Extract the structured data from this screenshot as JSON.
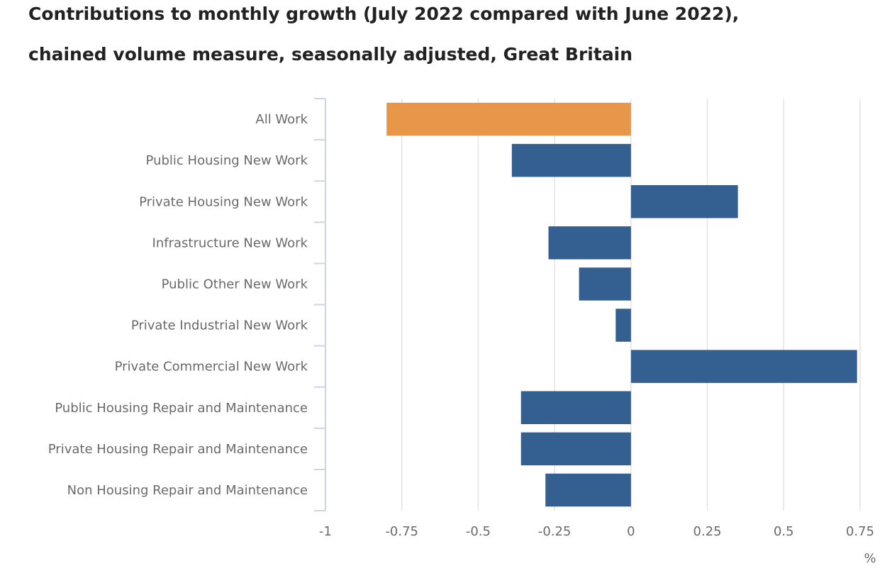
{
  "chart_data": {
    "type": "bar",
    "orientation": "horizontal",
    "title_line_1": "Contributions to monthly growth (July 2022 compared with June 2022),",
    "title_line_2": "chained volume measure, seasonally adjusted, Great Britain",
    "xlabel": "%",
    "ylabel": "",
    "xlim": [
      -1,
      0.75
    ],
    "xticks": [
      "-1",
      "-0.75",
      "-0.5",
      "-0.25",
      "0",
      "0.25",
      "0.5",
      "0.75"
    ],
    "xtick_values": [
      -1,
      -0.75,
      -0.5,
      -0.25,
      0,
      0.25,
      0.5,
      0.75
    ],
    "grid": true,
    "legend": "none",
    "categories": [
      "All Work",
      "Public Housing New Work",
      "Private Housing New Work",
      "Infrastructure New Work",
      "Public Other New Work",
      "Private Industrial New Work",
      "Private Commercial New Work",
      "Public Housing Repair and Maintenance",
      "Private Housing Repair and Maintenance",
      "Non Housing Repair and Maintenance"
    ],
    "values": [
      -0.8,
      -0.39,
      0.35,
      -0.27,
      -0.17,
      -0.05,
      0.74,
      -0.36,
      -0.36,
      -0.28
    ],
    "highlight_index": 0,
    "colors": {
      "highlight": "#E8974A",
      "bar": "#336090",
      "grid": "#E4E4E4",
      "axis": "#CDD3EA",
      "text": "#6A6A6A",
      "title": "#222222"
    }
  }
}
